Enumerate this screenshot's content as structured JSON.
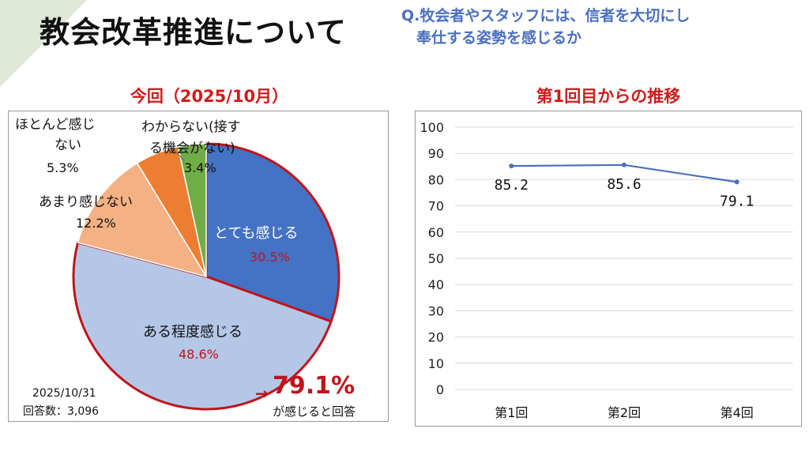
{
  "header": {
    "title": "教会改革推進について",
    "question_line1": "Q.牧会者やスタッフには、信者を大切にし",
    "question_line2": "　奉仕する姿勢を感じるか"
  },
  "pie_panel": {
    "subtitle": "今回（2025/10月）",
    "date": "2025/10/31",
    "respondents": "回答数：3,096",
    "summary_arrow": "→",
    "summary_value": "79.1%",
    "summary_text": "が感じると回答"
  },
  "line_panel": {
    "subtitle": "第1回目からの推移"
  },
  "colors": {
    "strong": "#4472c4",
    "some": "#b4c7e7",
    "little": "#f4b183",
    "none": "#ed7d31",
    "unknown": "#70ad47",
    "highlight": "#c0141b",
    "line": "#4a72b8"
  },
  "chart_data": [
    {
      "type": "pie",
      "title": "今回（2025/10月）",
      "slices": [
        {
          "label": "とても感じる",
          "value": 30.5,
          "value_label": "30.5%"
        },
        {
          "label": "ある程度感じる",
          "value": 48.6,
          "value_label": "48.6%"
        },
        {
          "label": "あまり感じない",
          "value": 12.2,
          "value_label": "12.2%"
        },
        {
          "label_lines": [
            "ほとんど感じ",
            "ない"
          ],
          "value": 5.3,
          "value_label": "5.3%"
        },
        {
          "label_lines": [
            "わからない(接す",
            "る機会がない)"
          ],
          "value": 3.4,
          "value_label": "3.4%"
        }
      ]
    },
    {
      "type": "line",
      "title": "第1回目からの推移",
      "categories": [
        "第1回",
        "第2回",
        "第4回"
      ],
      "values": [
        85.2,
        85.6,
        79.1
      ],
      "value_labels": [
        "85.2",
        "85.6",
        "79.1"
      ],
      "ylim": [
        0,
        100
      ],
      "yticks": [
        0,
        10,
        20,
        30,
        40,
        50,
        60,
        70,
        80,
        90,
        100
      ],
      "grid": true
    }
  ]
}
